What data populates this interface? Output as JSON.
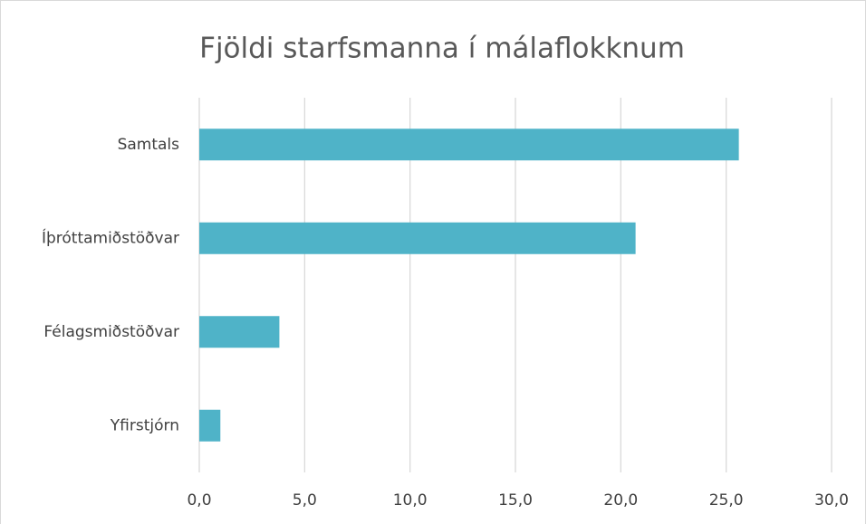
{
  "chart_data": {
    "type": "hbar",
    "title": "Fjöldi starfsmanna í málaflokknum",
    "categories": [
      "Samtals",
      "Íþróttamiðstöðvar",
      "Félagsmiðstöðvar",
      "Yfirstjórn"
    ],
    "values": [
      25.6,
      20.7,
      3.8,
      1.0
    ],
    "color": "#4fb3c8",
    "xlim": [
      0,
      30
    ],
    "xticks": [
      {
        "value": 0,
        "label": "0,0"
      },
      {
        "value": 5,
        "label": "5,0"
      },
      {
        "value": 10,
        "label": "10,0"
      },
      {
        "value": 15,
        "label": "15,0"
      },
      {
        "value": 20,
        "label": "20,0"
      },
      {
        "value": 25,
        "label": "25,0"
      },
      {
        "value": 30,
        "label": "30,0"
      }
    ],
    "grid": true
  }
}
